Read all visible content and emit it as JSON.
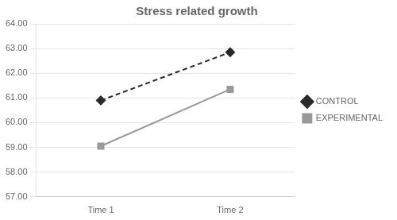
{
  "chart_data": {
    "type": "line",
    "title": "Stress related growth",
    "categories": [
      "Time 1",
      "Time 2"
    ],
    "series": [
      {
        "name": "CONTROL",
        "color": "#2a2a2a",
        "marker": "diamond",
        "line_style": "dashed",
        "values": [
          60.9,
          62.85
        ]
      },
      {
        "name": "EXPERIMENTAL",
        "color": "#999999",
        "marker": "square",
        "line_style": "solid",
        "values": [
          59.05,
          61.35
        ]
      }
    ],
    "ylim": [
      57.0,
      64.0
    ],
    "yticks": [
      {
        "value": 57.0,
        "label": "57.00"
      },
      {
        "value": 58.0,
        "label": "58.00"
      },
      {
        "value": 59.0,
        "label": "59.00"
      },
      {
        "value": 60.0,
        "label": "60.00"
      },
      {
        "value": 61.0,
        "label": "61.00"
      },
      {
        "value": 62.0,
        "label": "62.00"
      },
      {
        "value": 63.0,
        "label": "63.00"
      },
      {
        "value": 64.0,
        "label": "64.00"
      }
    ],
    "grid": true,
    "legend": "right"
  }
}
